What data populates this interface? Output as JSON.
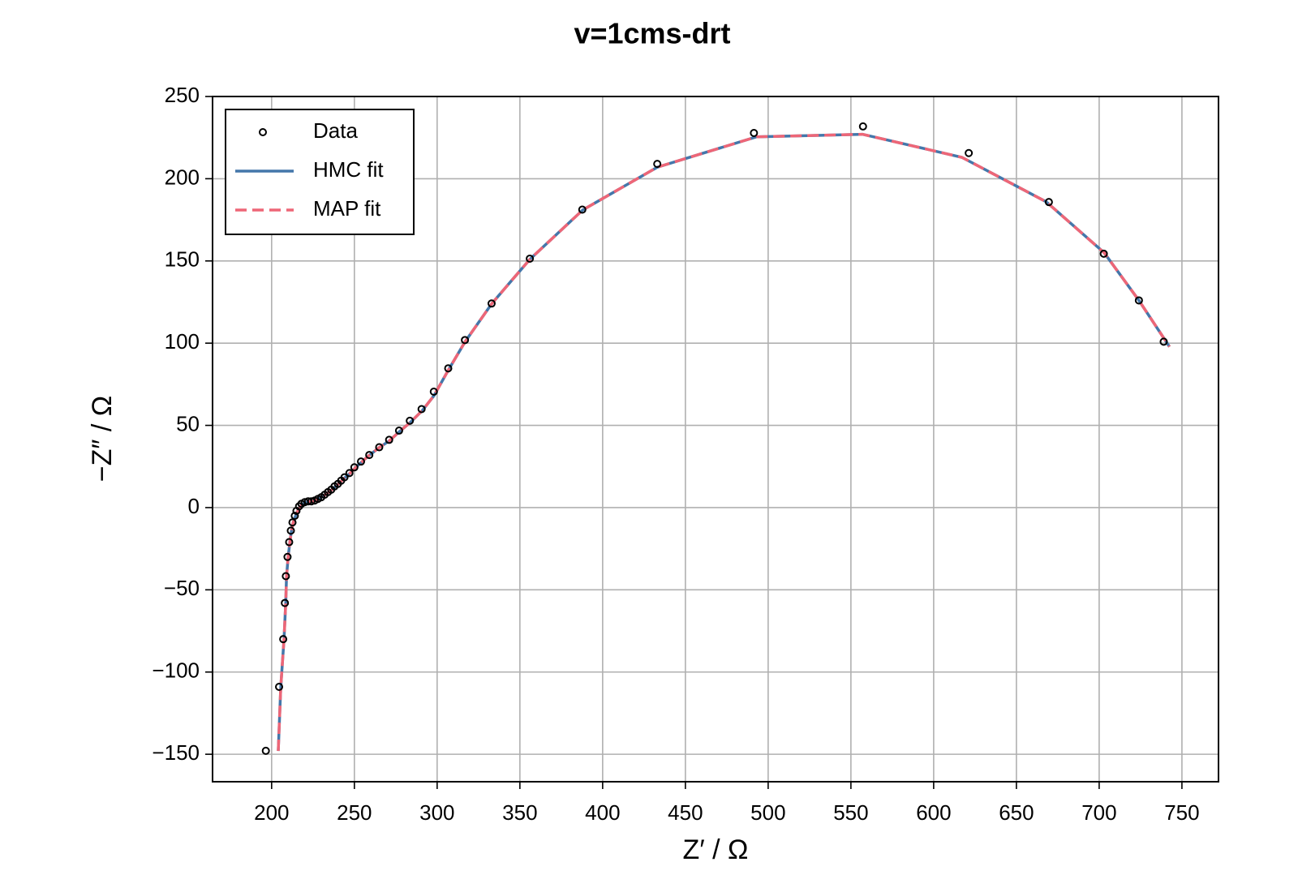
{
  "chart_data": {
    "type": "scatter",
    "title": "v=1cms-drt",
    "x_label": "Z′ / Ω",
    "y_label": "−Z″ / Ω",
    "xlim": [
      164.3,
      772.1
    ],
    "ylim": [
      -166.7,
      250
    ],
    "xticks": [
      200,
      250,
      300,
      350,
      400,
      450,
      500,
      550,
      600,
      650,
      700,
      750
    ],
    "yticks": [
      {
        "value": -150,
        "label": "−150"
      },
      {
        "value": -100,
        "label": "−100"
      },
      {
        "value": -50,
        "label": "−50"
      },
      0,
      50,
      100,
      150,
      200,
      250
    ],
    "grid": true,
    "legend": "upper left",
    "series": [
      {
        "name": "Data",
        "type": "scatter",
        "color": "#000000",
        "x": [
          196.5,
          204.5,
          207,
          208,
          208.6,
          209.6,
          210.6,
          211.6,
          212.6,
          214,
          215,
          216.6,
          218,
          220,
          222,
          224,
          226,
          228,
          230,
          232,
          234,
          236,
          238,
          240,
          242,
          244,
          247,
          250,
          254,
          259,
          265,
          271,
          277,
          283.5,
          290.6,
          298,
          306.7,
          316.8,
          332.9,
          356,
          387.7,
          433,
          491.4,
          557.3,
          621.2,
          669.6,
          702.8,
          724,
          739
        ],
        "values": [
          -147.9,
          -109,
          -80,
          -58,
          -41.7,
          -30,
          -21,
          -14,
          -9,
          -5,
          -2,
          0.8,
          2.3,
          3.3,
          3.8,
          3.8,
          4.3,
          5.3,
          6.3,
          7.8,
          9.4,
          10.9,
          12.9,
          14.4,
          16.4,
          18.4,
          21,
          24.5,
          28,
          32,
          36.7,
          41.2,
          46.8,
          52.8,
          59.9,
          70.5,
          84.7,
          101.9,
          124.1,
          151.4,
          181.2,
          209,
          227.8,
          231.8,
          215.6,
          185.8,
          154.4,
          126,
          100.9
        ]
      },
      {
        "name": "HMC fit",
        "type": "line",
        "color": "#4477aa",
        "linestyle": "solid",
        "x": [
          204,
          205.5,
          207.5,
          208.5,
          209,
          210,
          211,
          212,
          213,
          214.5,
          216,
          218,
          220,
          222,
          225,
          228,
          232,
          236,
          240,
          244,
          248,
          252,
          258,
          265,
          271,
          277,
          284,
          291,
          298,
          307,
          317,
          333,
          356,
          388,
          433,
          493,
          557,
          617,
          668,
          703,
          724,
          742.5
        ],
        "values": [
          -148,
          -109,
          -80,
          -58,
          -42,
          -30,
          -21,
          -14,
          -9,
          -5,
          -1.5,
          1.5,
          3,
          3.5,
          3.8,
          5,
          7.5,
          10.5,
          14,
          18,
          21.5,
          25.5,
          31,
          36.5,
          40.5,
          46,
          52,
          59,
          68,
          84,
          101,
          124,
          151,
          181,
          207,
          225.5,
          227,
          213,
          186,
          155,
          126,
          97.8
        ]
      },
      {
        "name": "MAP fit",
        "type": "line",
        "color": "#ee6677",
        "linestyle": "dashed",
        "x": [
          204,
          205.5,
          207.5,
          208.5,
          209,
          210,
          211,
          212,
          213,
          214.5,
          216,
          218,
          220,
          222,
          225,
          228,
          232,
          236,
          240,
          244,
          248,
          252,
          258,
          265,
          271,
          277,
          284,
          291,
          298,
          307,
          317,
          333,
          356,
          388,
          433,
          493,
          557,
          617,
          668,
          703,
          724,
          742.5
        ],
        "values": [
          -148,
          -109,
          -80,
          -58,
          -42,
          -30,
          -21,
          -14,
          -9,
          -5,
          -1.5,
          1.5,
          3,
          3.5,
          3.8,
          5,
          7.5,
          10.5,
          14,
          18,
          21.5,
          25.5,
          31,
          36.5,
          40.5,
          46,
          52,
          59,
          68,
          84,
          101,
          124,
          151,
          181,
          207,
          225.5,
          227,
          213,
          186,
          155,
          126,
          97.8
        ]
      }
    ]
  }
}
